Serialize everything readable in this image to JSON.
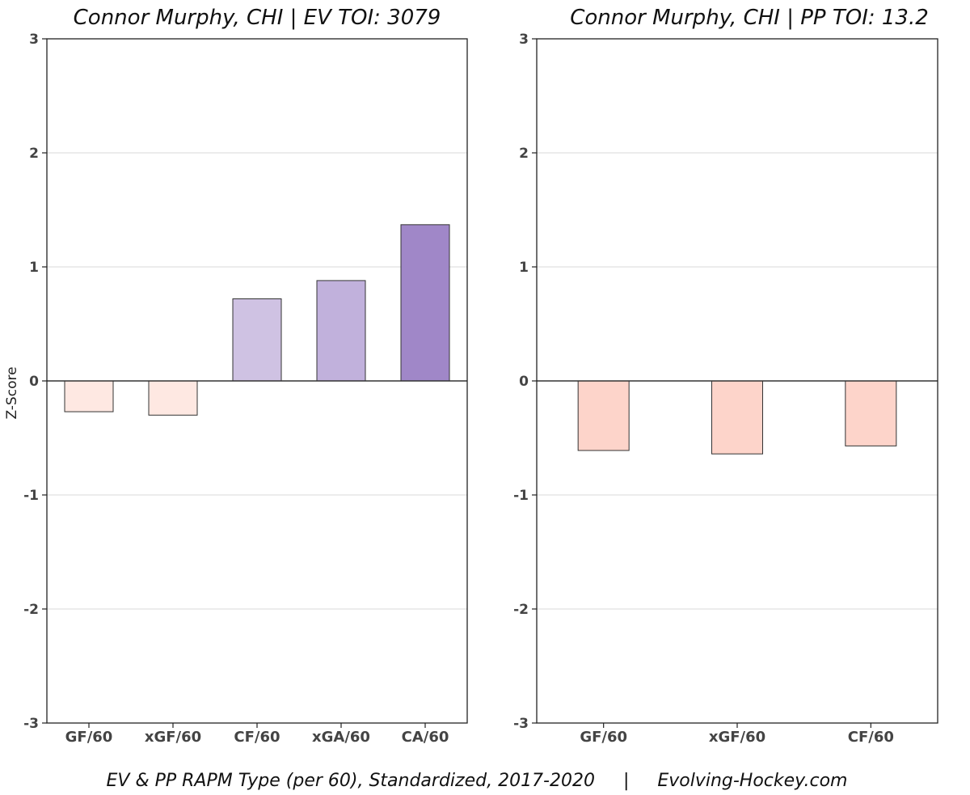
{
  "chart_data": [
    {
      "type": "bar",
      "title": "Connor Murphy, CHI  |  EV TOI: 3079",
      "ylabel": "Z-Score",
      "ylim": [
        -3,
        3
      ],
      "yticks": [
        "-3",
        "-2",
        "-1",
        "0",
        "1",
        "2",
        "3"
      ],
      "grid": true,
      "categories": [
        "GF/60",
        "xGF/60",
        "CF/60",
        "xGA/60",
        "CA/60"
      ],
      "values": [
        -0.27,
        -0.3,
        0.72,
        0.88,
        1.37
      ],
      "colors": [
        "#fee8e2",
        "#fee8e2",
        "#cfc2e3",
        "#c1b1dc",
        "#a087c8"
      ]
    },
    {
      "type": "bar",
      "title": "Connor Murphy, CHI  |  PP TOI: 13.2",
      "ylabel": "",
      "ylim": [
        -3,
        3
      ],
      "yticks": [
        "-3",
        "-2",
        "-1",
        "0",
        "1",
        "2",
        "3"
      ],
      "grid": true,
      "categories": [
        "GF/60",
        "xGF/60",
        "CF/60"
      ],
      "values": [
        -0.61,
        -0.64,
        -0.57
      ],
      "colors": [
        "#fdd4ca",
        "#fdd4ca",
        "#fdd4ca"
      ]
    }
  ],
  "caption": "EV & PP RAPM Type (per 60), Standardized, 2017-2020     |     Evolving-Hockey.com"
}
